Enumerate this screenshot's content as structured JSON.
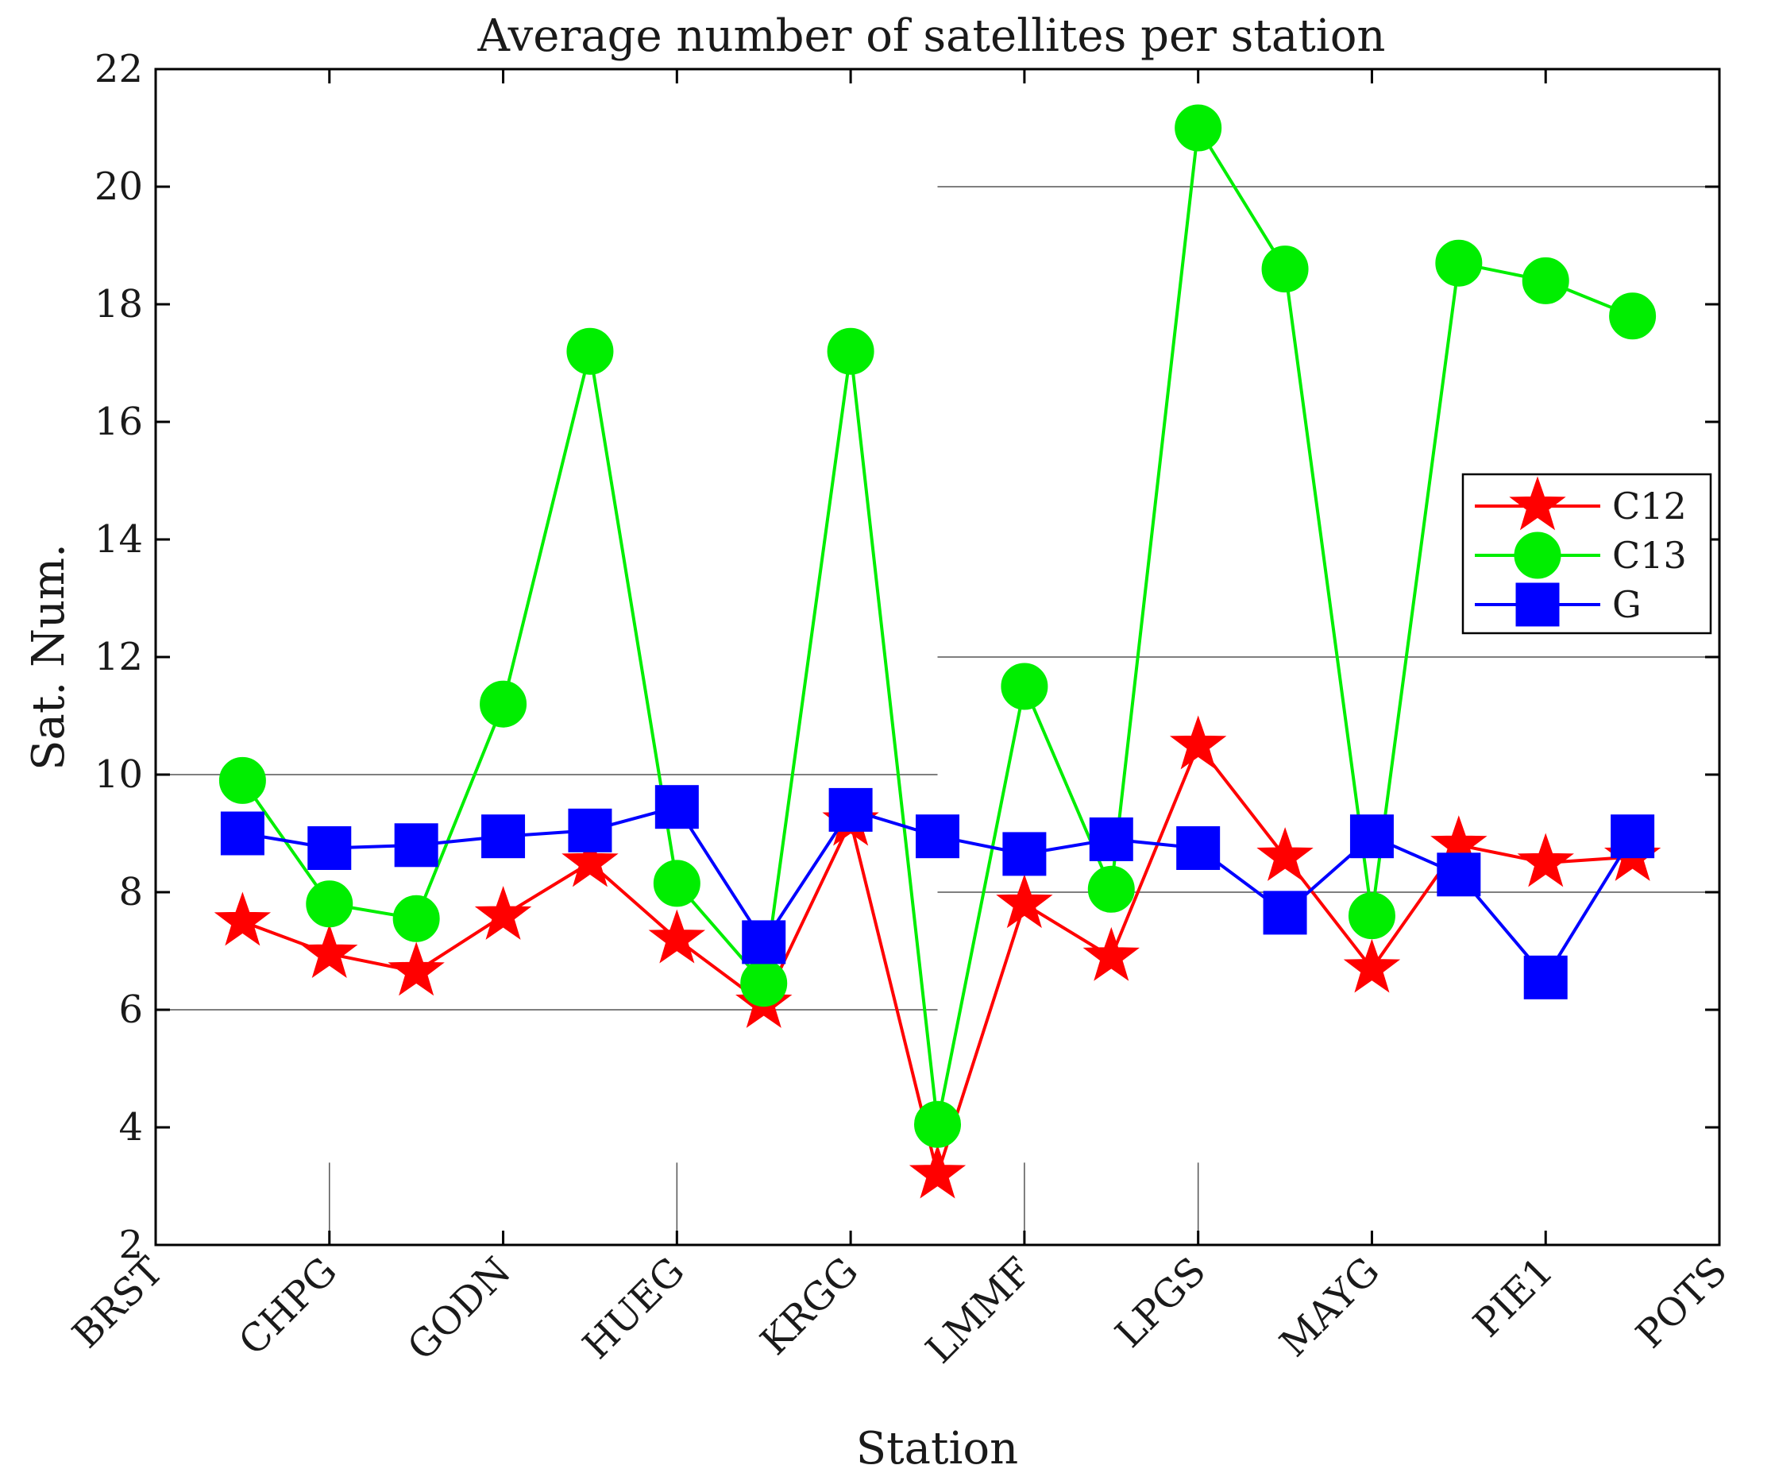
{
  "chart_data": {
    "type": "line",
    "title": "Average number of satellites per station",
    "xlabel": "Station",
    "ylabel": "Sat. Num.",
    "ylim": [
      2,
      22
    ],
    "yticks": [
      2,
      4,
      6,
      8,
      10,
      12,
      14,
      16,
      18,
      20,
      22
    ],
    "xlim": [
      0,
      18
    ],
    "xtick_labels": [
      "BRST",
      "CHPG",
      "GODN",
      "HUEG",
      "KRGG",
      "LMMF",
      "LPGS",
      "MAYG",
      "PIE1",
      "POTS"
    ],
    "x": [
      1,
      2,
      3,
      4,
      5,
      6,
      7,
      8,
      9,
      10,
      11,
      12,
      13,
      14,
      15,
      16,
      17
    ],
    "legend_position": "right",
    "series": [
      {
        "name": "C12",
        "color": "#ff0000",
        "marker": "star",
        "values": [
          7.5,
          6.95,
          6.65,
          7.6,
          8.5,
          7.2,
          6.1,
          9.2,
          3.2,
          7.8,
          6.9,
          10.5,
          8.6,
          6.7,
          8.8,
          8.5,
          8.6
        ]
      },
      {
        "name": "C13",
        "color": "#00ee00",
        "marker": "circle",
        "values": [
          9.9,
          7.8,
          7.55,
          11.2,
          17.2,
          8.15,
          6.45,
          17.2,
          4.05,
          11.5,
          8.05,
          21.0,
          18.6,
          7.6,
          18.7,
          18.4,
          17.8
        ]
      },
      {
        "name": "G",
        "color": "#0000ff",
        "marker": "square",
        "values": [
          9.0,
          8.75,
          8.8,
          8.95,
          9.05,
          9.45,
          7.15,
          9.4,
          8.95,
          8.65,
          8.9,
          8.75,
          7.65,
          8.95,
          8.3,
          6.55,
          8.95
        ]
      }
    ]
  }
}
